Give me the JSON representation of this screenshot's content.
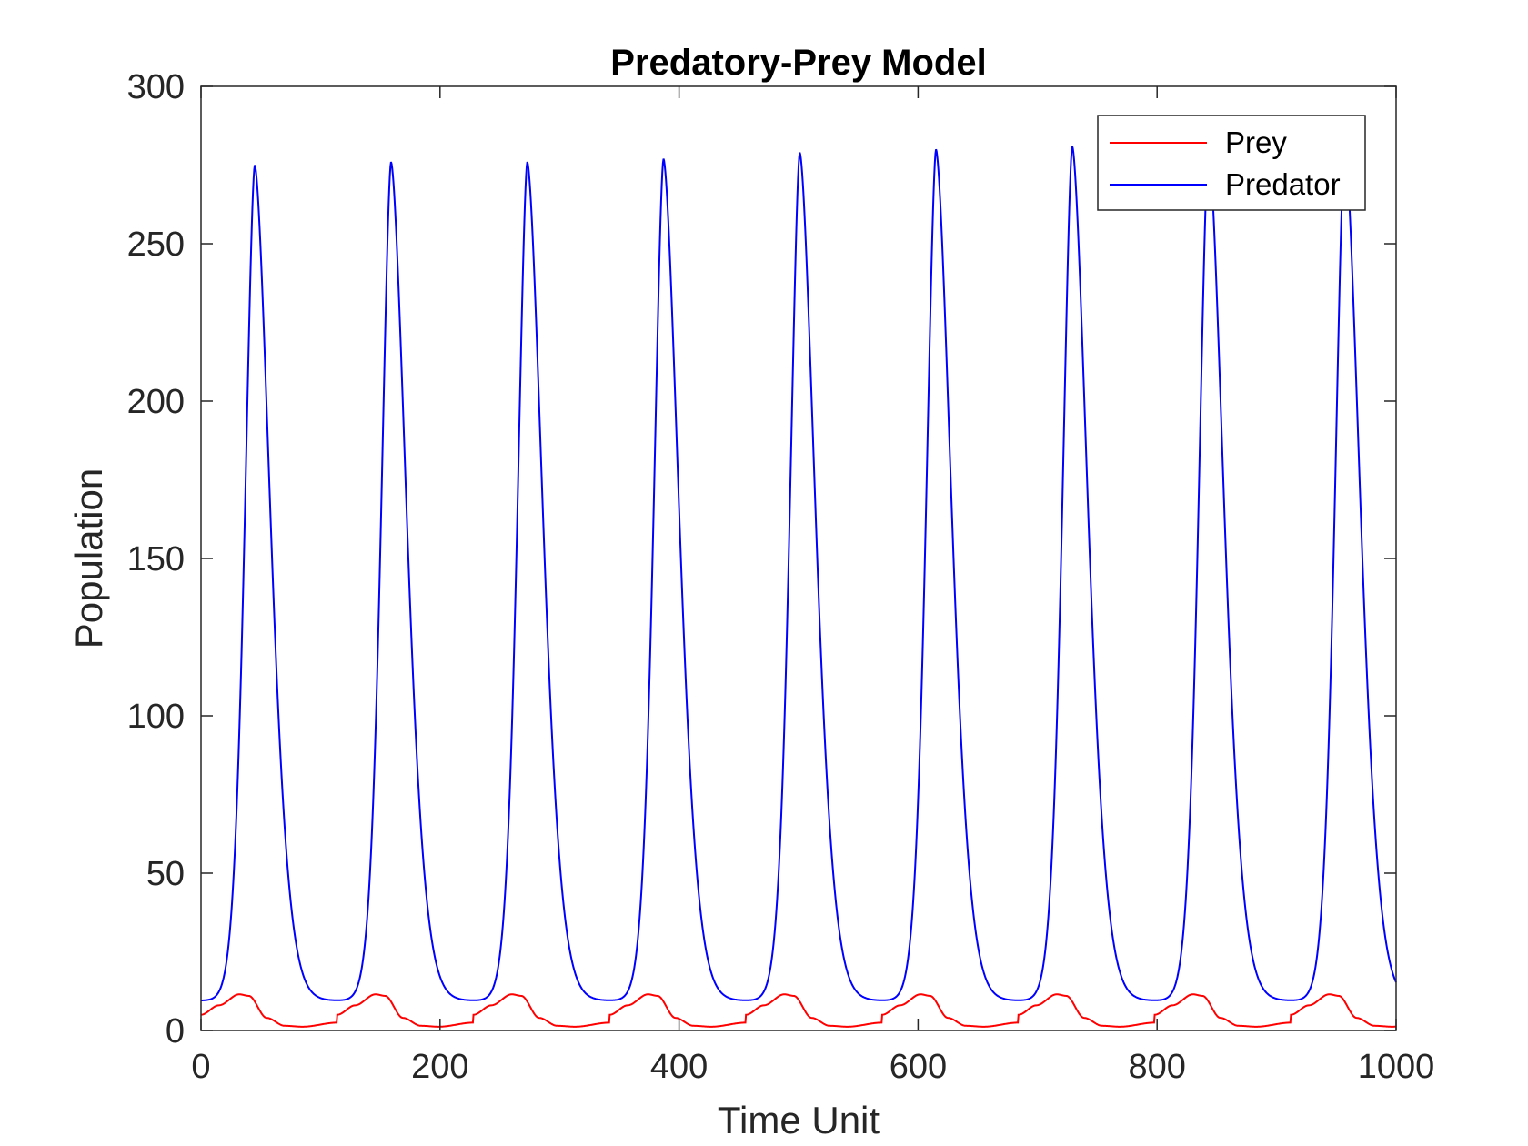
{
  "chart_data": {
    "type": "line",
    "title": "Predatory-Prey Model",
    "xlabel": "Time Unit",
    "ylabel": "Population",
    "xlim": [
      0,
      1000
    ],
    "ylim": [
      0,
      300
    ],
    "xticks": [
      0,
      200,
      400,
      600,
      800,
      1000
    ],
    "yticks": [
      0,
      50,
      100,
      150,
      200,
      250,
      300
    ],
    "grid": false,
    "legend_position": "top-right",
    "series": [
      {
        "name": "Prey",
        "color": "#ff0000",
        "period": 114,
        "start_value": 5,
        "points": [
          [
            0,
            5
          ],
          [
            15,
            8
          ],
          [
            32,
            11.5
          ],
          [
            40,
            11
          ],
          [
            55,
            4
          ],
          [
            70,
            1.5
          ],
          [
            85,
            1.2
          ],
          [
            114,
            2.5
          ]
        ]
      },
      {
        "name": "Predator",
        "color": "#0000ff",
        "period": 114,
        "start_value": 10,
        "peaks": [
          [
            45,
            275
          ],
          [
            159,
            276
          ],
          [
            273,
            276
          ],
          [
            387,
            277
          ],
          [
            501,
            279
          ],
          [
            615,
            280
          ],
          [
            729,
            281
          ],
          [
            843,
            281
          ],
          [
            957,
            282
          ]
        ],
        "troughs": [
          [
            0,
            10
          ],
          [
            114,
            10
          ],
          [
            228,
            10
          ],
          [
            342,
            10
          ],
          [
            456,
            10
          ],
          [
            570,
            10
          ],
          [
            684,
            9.5
          ],
          [
            798,
            9.5
          ],
          [
            912,
            9
          ],
          [
            1000,
            24
          ]
        ]
      }
    ]
  }
}
